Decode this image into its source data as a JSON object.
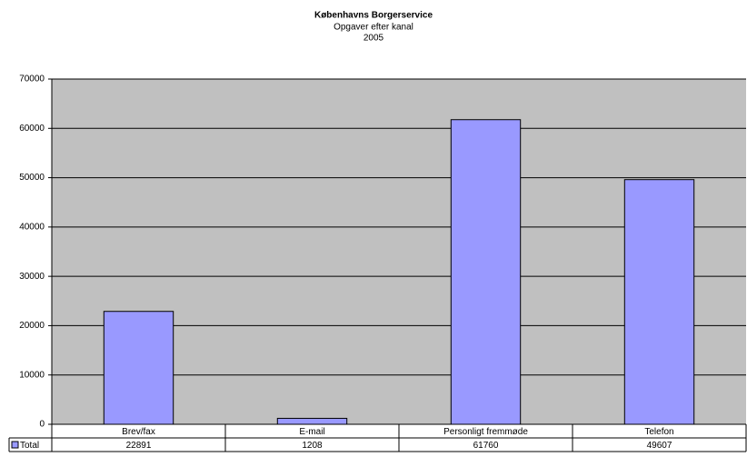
{
  "chart_data": {
    "type": "bar",
    "title": "Københavns Borgerservice",
    "subtitle": [
      "Opgaver efter kanal",
      "2005"
    ],
    "categories": [
      "Brev/fax",
      "E-mail",
      "Personligt fremmøde",
      "Telefon"
    ],
    "series": [
      {
        "name": "Total",
        "color": "#9999ff",
        "values": [
          22891,
          1208,
          61760,
          49607
        ]
      }
    ],
    "ylim": [
      0,
      70000
    ],
    "yticks": [
      0,
      10000,
      20000,
      30000,
      40000,
      50000,
      60000,
      70000
    ],
    "grid": true,
    "plot_background": "#c0c0c0",
    "data_table": true
  }
}
